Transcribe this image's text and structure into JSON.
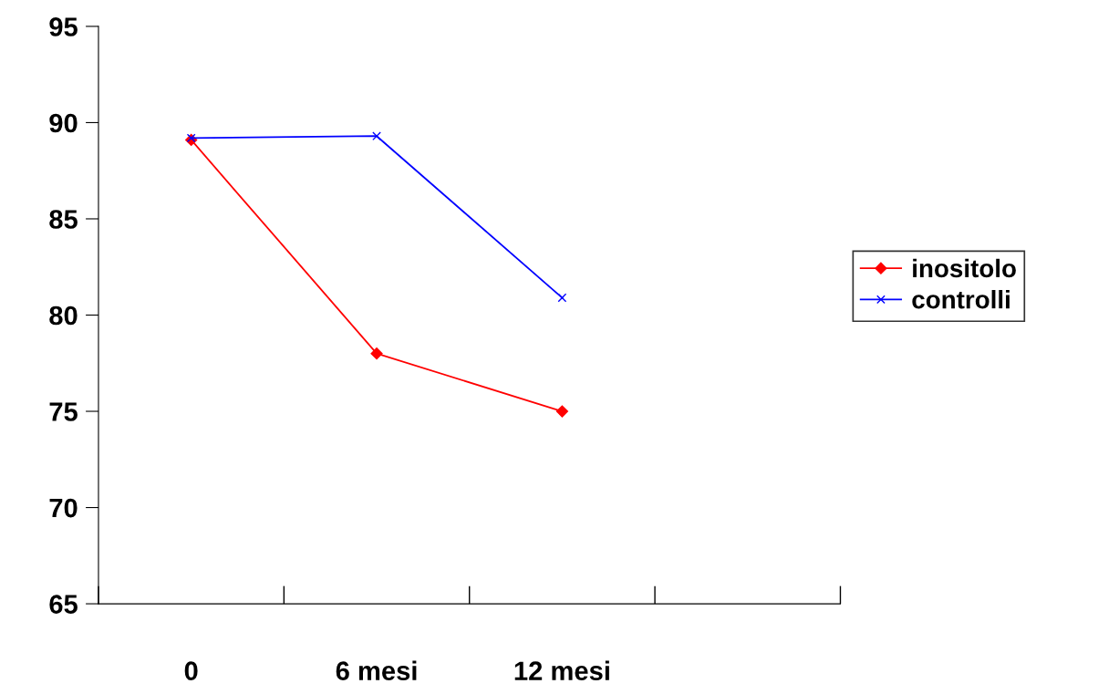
{
  "chart_data": {
    "type": "line",
    "categories": [
      "0",
      "6 mesi",
      "12 mesi",
      null
    ],
    "series": [
      {
        "name": "inositolo",
        "color": "#ff0000",
        "marker": "diamond",
        "values": [
          89.1,
          78.0,
          75.0,
          null
        ]
      },
      {
        "name": "controlli",
        "color": "#0000ff",
        "marker": "cross",
        "values": [
          89.2,
          89.3,
          80.9,
          null
        ]
      }
    ],
    "ylim": [
      65,
      95
    ],
    "yticks": [
      65,
      70,
      75,
      80,
      85,
      90,
      95
    ],
    "grid": false,
    "legend": "right",
    "line_style": "solid"
  }
}
